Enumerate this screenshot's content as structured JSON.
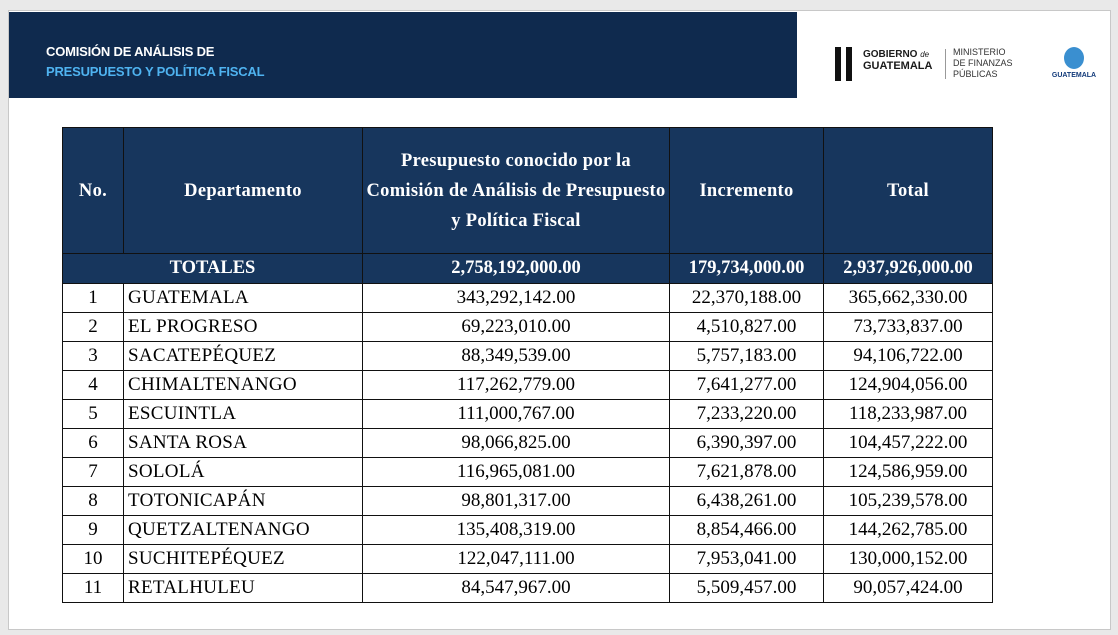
{
  "header": {
    "title_line1": "COMISIÓN DE ANÁLISIS DE",
    "title_line2": "PRESUPUESTO Y POLÍTICA FISCAL",
    "logo_gobierno": [
      "GOBIERNO",
      "de",
      "GUATEMALA"
    ],
    "logo_ministerio": [
      "MINISTERIO",
      "DE FINANZAS",
      "PÚBLICAS"
    ],
    "logo_right": "GUATEMALA"
  },
  "table": {
    "columns": [
      "No.",
      "Departamento",
      "Presupuesto conocido por la Comisión de Análisis de Presupuesto y Política Fiscal",
      "Incremento",
      "Total"
    ],
    "totals": {
      "label": "TOTALES",
      "values": [
        "2,758,192,000.00",
        "179,734,000.00",
        "2,937,926,000.00"
      ]
    },
    "rows": [
      [
        "1",
        "GUATEMALA",
        "343,292,142.00",
        "22,370,188.00",
        "365,662,330.00"
      ],
      [
        "2",
        "EL PROGRESO",
        "69,223,010.00",
        "4,510,827.00",
        "73,733,837.00"
      ],
      [
        "3",
        "SACATEPÉQUEZ",
        "88,349,539.00",
        "5,757,183.00",
        "94,106,722.00"
      ],
      [
        "4",
        "CHIMALTENANGO",
        "117,262,779.00",
        "7,641,277.00",
        "124,904,056.00"
      ],
      [
        "5",
        "ESCUINTLA",
        "111,000,767.00",
        "7,233,220.00",
        "118,233,987.00"
      ],
      [
        "6",
        "SANTA ROSA",
        "98,066,825.00",
        "6,390,397.00",
        "104,457,222.00"
      ],
      [
        "7",
        "SOLOLÁ",
        "116,965,081.00",
        "7,621,878.00",
        "124,586,959.00"
      ],
      [
        "8",
        "TOTONICAPÁN",
        "98,801,317.00",
        "6,438,261.00",
        "105,239,578.00"
      ],
      [
        "9",
        "QUETZALTENANGO",
        "135,408,319.00",
        "8,854,466.00",
        "144,262,785.00"
      ],
      [
        "10",
        "SUCHITEPÉQUEZ",
        "122,047,111.00",
        "7,953,041.00",
        "130,000,152.00"
      ],
      [
        "11",
        "RETALHULEU",
        "84,547,967.00",
        "5,509,457.00",
        "90,057,424.00"
      ]
    ]
  }
}
